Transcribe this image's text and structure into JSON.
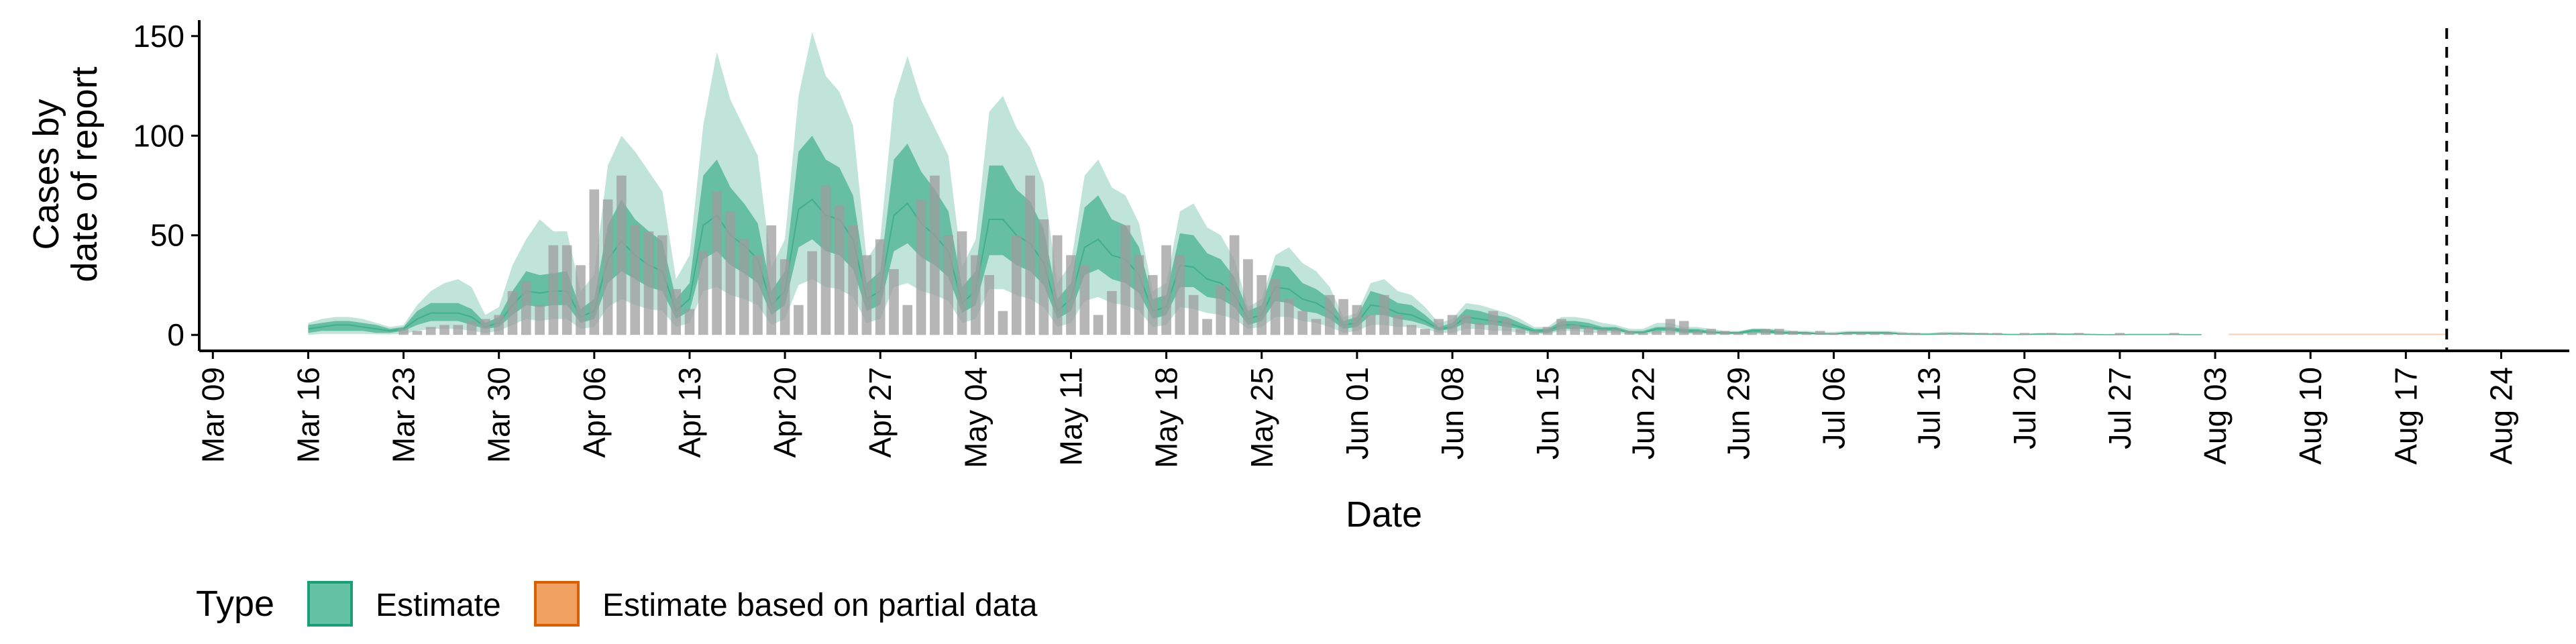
{
  "chart_data": {
    "type": "bar",
    "xlabel": "Date",
    "ylabel_lines": [
      "Cases by",
      "date of report"
    ],
    "yticks": [
      0,
      50,
      100,
      150
    ],
    "ylim": [
      -8,
      158
    ],
    "xlim": [
      "2020-03-08",
      "2020-08-29"
    ],
    "xticks": [
      "2020-03-09",
      "2020-03-16",
      "2020-03-23",
      "2020-03-30",
      "2020-04-06",
      "2020-04-13",
      "2020-04-20",
      "2020-04-27",
      "2020-05-04",
      "2020-05-11",
      "2020-05-18",
      "2020-05-25",
      "2020-06-01",
      "2020-06-08",
      "2020-06-15",
      "2020-06-22",
      "2020-06-29",
      "2020-07-06",
      "2020-07-13",
      "2020-07-20",
      "2020-07-27",
      "2020-08-03",
      "2020-08-10",
      "2020-08-17",
      "2020-08-24"
    ],
    "xtick_labels": [
      "Mar 09",
      "Mar 16",
      "Mar 23",
      "Mar 30",
      "Apr 06",
      "Apr 13",
      "Apr 20",
      "Apr 27",
      "May 04",
      "May 11",
      "May 18",
      "May 25",
      "Jun 01",
      "Jun 08",
      "Jun 15",
      "Jun 22",
      "Jun 29",
      "Jul 06",
      "Jul 13",
      "Jul 20",
      "Jul 27",
      "Aug 03",
      "Aug 10",
      "Aug 17",
      "Aug 24"
    ],
    "vline_date": "2020-08-20",
    "legend": {
      "title": "Type",
      "position": "bottom-left",
      "items": [
        {
          "label": "Estimate",
          "fill": "#66c2a5",
          "stroke": "#1b9e77"
        },
        {
          "label": "Estimate based on partial data",
          "fill": "#f0a060",
          "stroke": "#d95f02"
        }
      ]
    },
    "colors": {
      "bars": "#9e9e9e",
      "band_outer": "#1b9e77",
      "band_inner": "#1b9e77",
      "partial": "#d95f02",
      "vline": "#000000"
    },
    "reported": {
      "start": "2020-03-23",
      "values": [
        3,
        2,
        4,
        5,
        5,
        7,
        8,
        10,
        22,
        27,
        15,
        45,
        45,
        35,
        73,
        68,
        80,
        55,
        52,
        50,
        23,
        13,
        42,
        72,
        62,
        48,
        40,
        55,
        38,
        15,
        42,
        75,
        65,
        55,
        40,
        48,
        33,
        15,
        68,
        80,
        50,
        52,
        40,
        30,
        12,
        50,
        80,
        58,
        50,
        40,
        35,
        10,
        22,
        55,
        40,
        30,
        45,
        40,
        20,
        8,
        25,
        50,
        38,
        30,
        28,
        18,
        12,
        8,
        20,
        18,
        15,
        10,
        20,
        10,
        5,
        3,
        8,
        10,
        10,
        6,
        12,
        8,
        3,
        2,
        4,
        8,
        5,
        4,
        3,
        3,
        2,
        1,
        2,
        8,
        7,
        2,
        3,
        2,
        1,
        1,
        3,
        3,
        2,
        1,
        2,
        1,
        1,
        1,
        1,
        1,
        1,
        1,
        0,
        1,
        1,
        1,
        1,
        1,
        0,
        1,
        0,
        1,
        0,
        1,
        0,
        0,
        1,
        0,
        0,
        0,
        1,
        0,
        0,
        0,
        0,
        0,
        0,
        0,
        0,
        0,
        0,
        0,
        0
      ]
    },
    "estimate": {
      "start": "2020-03-16",
      "median": [
        3,
        4,
        5,
        5,
        4,
        3,
        2,
        3,
        8,
        11,
        11,
        11,
        9,
        4,
        6,
        15,
        22,
        21,
        22,
        22,
        9,
        12,
        38,
        47,
        40,
        35,
        32,
        12,
        18,
        55,
        60,
        50,
        45,
        38,
        15,
        22,
        63,
        68,
        60,
        58,
        48,
        18,
        22,
        60,
        66,
        56,
        50,
        42,
        16,
        22,
        58,
        58,
        50,
        46,
        36,
        12,
        18,
        44,
        48,
        40,
        38,
        30,
        12,
        14,
        35,
        34,
        28,
        26,
        20,
        8,
        10,
        24,
        23,
        18,
        16,
        12,
        5,
        6,
        15,
        14,
        11,
        10,
        7,
        3,
        4,
        9,
        8,
        7,
        6,
        4,
        2,
        2,
        5,
        5,
        4,
        3,
        3,
        1,
        1,
        3,
        3,
        2,
        2,
        1,
        1,
        1,
        2,
        2,
        1,
        1,
        1,
        0.5,
        0.5,
        1,
        1,
        1,
        1,
        0.5,
        0.3,
        0.3,
        0.6,
        0.6,
        0.5,
        0.4,
        0.3,
        0.2,
        0.2,
        0.4,
        0.4,
        0.3,
        0.3,
        0.2,
        0.1,
        0.1,
        0.2,
        0.2,
        0.2,
        0.2,
        0.1,
        0.1
      ],
      "inner_low": [
        1,
        2,
        2,
        2,
        2,
        1,
        1,
        2,
        5,
        7,
        7,
        7,
        5,
        3,
        4,
        10,
        15,
        14,
        15,
        15,
        6,
        8,
        26,
        32,
        28,
        24,
        22,
        8,
        12,
        38,
        42,
        35,
        31,
        26,
        10,
        15,
        44,
        48,
        42,
        40,
        33,
        12,
        15,
        42,
        46,
        39,
        35,
        29,
        11,
        15,
        40,
        40,
        35,
        32,
        25,
        8,
        12,
        30,
        33,
        28,
        26,
        21,
        8,
        10,
        24,
        24,
        19,
        18,
        14,
        5,
        7,
        17,
        16,
        12,
        11,
        8,
        3,
        4,
        10,
        10,
        8,
        7,
        5,
        2,
        3,
        6,
        5,
        5,
        4,
        3,
        1,
        1,
        3,
        3,
        3,
        2,
        2,
        1,
        1,
        2,
        2,
        1,
        1,
        1,
        0.5,
        0.5,
        1,
        1,
        0.5,
        0.5,
        0.5,
        0.3,
        0.3,
        0.5,
        0.5,
        0.5,
        0.5,
        0.3,
        0.2,
        0.2,
        0.3,
        0.3,
        0.3,
        0.2,
        0.2,
        0.1,
        0.1,
        0.2,
        0.2,
        0.2,
        0.2,
        0.1,
        0.05,
        0.05,
        0.1,
        0.1,
        0.1,
        0.1,
        0.05,
        0.05
      ],
      "inner_high": [
        5,
        6,
        7,
        7,
        6,
        5,
        3,
        4,
        12,
        16,
        16,
        16,
        13,
        6,
        9,
        22,
        32,
        30,
        31,
        32,
        13,
        18,
        55,
        68,
        58,
        52,
        47,
        18,
        26,
        80,
        88,
        74,
        66,
        56,
        22,
        32,
        92,
        100,
        88,
        84,
        70,
        26,
        32,
        88,
        96,
        82,
        73,
        62,
        24,
        32,
        85,
        85,
        73,
        67,
        53,
        18,
        26,
        64,
        70,
        58,
        55,
        44,
        18,
        20,
        51,
        50,
        41,
        38,
        29,
        12,
        15,
        35,
        34,
        26,
        23,
        18,
        7,
        9,
        22,
        20,
        16,
        15,
        10,
        4,
        6,
        13,
        12,
        10,
        9,
        6,
        3,
        3,
        7,
        7,
        6,
        4,
        4,
        2,
        2,
        4,
        4,
        3,
        3,
        2,
        1.5,
        1.5,
        3,
        3,
        2,
        1.5,
        1.5,
        0.8,
        0.8,
        1.5,
        1.5,
        1.5,
        1.5,
        0.8,
        0.5,
        0.5,
        0.9,
        0.9,
        0.8,
        0.6,
        0.5,
        0.3,
        0.3,
        0.6,
        0.6,
        0.5,
        0.5,
        0.3,
        0.2,
        0.2,
        0.3,
        0.3,
        0.3,
        0.3,
        0.2,
        0.2
      ],
      "outer_low": [
        0,
        0.5,
        0.5,
        0.5,
        0.5,
        0.3,
        0.2,
        0.5,
        2,
        3,
        3,
        3,
        2,
        1,
        2,
        5,
        8,
        7,
        8,
        8,
        3,
        4,
        14,
        18,
        15,
        13,
        12,
        4,
        6,
        22,
        24,
        20,
        18,
        15,
        5,
        8,
        25,
        28,
        24,
        23,
        19,
        6,
        8,
        24,
        26,
        22,
        20,
        17,
        6,
        8,
        23,
        23,
        20,
        18,
        14,
        4,
        6,
        17,
        19,
        16,
        15,
        12,
        4,
        5,
        14,
        13,
        11,
        10,
        8,
        3,
        4,
        9,
        9,
        7,
        6,
        4,
        1,
        2,
        5,
        5,
        4,
        4,
        3,
        1,
        1,
        3,
        3,
        2,
        2,
        1,
        0.5,
        0.5,
        2,
        2,
        1,
        1,
        1,
        0.2,
        0.2,
        1,
        1,
        0.5,
        0.5,
        0.3,
        0.2,
        0.2,
        0.5,
        0.5,
        0.3,
        0.2,
        0.2,
        0.1,
        0.1,
        0.2,
        0.2,
        0.2,
        0.2,
        0.1,
        0.05,
        0.05,
        0.1,
        0.1,
        0.1,
        0.1,
        0.05,
        0,
        0,
        0.05,
        0.05,
        0.05,
        0.05,
        0,
        0,
        0,
        0,
        0,
        0,
        0,
        0,
        0
      ],
      "outer_high": [
        6,
        8,
        9,
        9,
        8,
        6,
        4,
        5,
        15,
        22,
        26,
        28,
        24,
        10,
        14,
        35,
        48,
        58,
        52,
        52,
        22,
        30,
        85,
        100,
        92,
        82,
        72,
        28,
        40,
        105,
        142,
        118,
        104,
        90,
        34,
        48,
        120,
        152,
        130,
        122,
        105,
        38,
        48,
        118,
        140,
        118,
        104,
        90,
        34,
        48,
        112,
        120,
        104,
        94,
        76,
        26,
        36,
        80,
        88,
        74,
        70,
        56,
        22,
        26,
        62,
        66,
        54,
        50,
        38,
        14,
        18,
        40,
        44,
        36,
        32,
        24,
        9,
        11,
        26,
        28,
        22,
        20,
        14,
        6,
        8,
        16,
        15,
        13,
        11,
        8,
        4,
        4,
        9,
        9,
        8,
        6,
        5,
        3,
        3,
        6,
        6,
        4,
        4,
        3,
        2,
        2,
        3,
        3,
        3,
        2,
        2,
        1.5,
        1.5,
        2,
        2,
        2,
        2,
        1.5,
        1,
        1,
        1.5,
        1.5,
        1.2,
        1,
        0.8,
        0.5,
        0.5,
        1,
        1,
        0.8,
        0.8,
        0.5,
        0.3,
        0.3,
        0.5,
        0.5,
        0.5,
        0.5,
        0.3,
        0.3
      ]
    },
    "partial": {
      "start": "2020-08-04",
      "end": "2020-08-20",
      "low": 0,
      "high": 0.6
    }
  }
}
